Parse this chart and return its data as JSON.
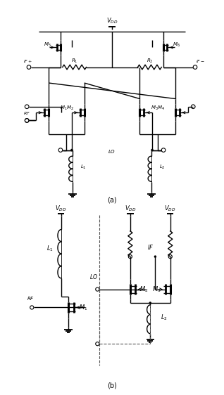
{
  "bg_color": "#ffffff",
  "line_color": "#000000",
  "lw": 1.0,
  "fig_width": 3.18,
  "fig_height": 5.62,
  "label_a": "(a)",
  "label_b": "(b)"
}
